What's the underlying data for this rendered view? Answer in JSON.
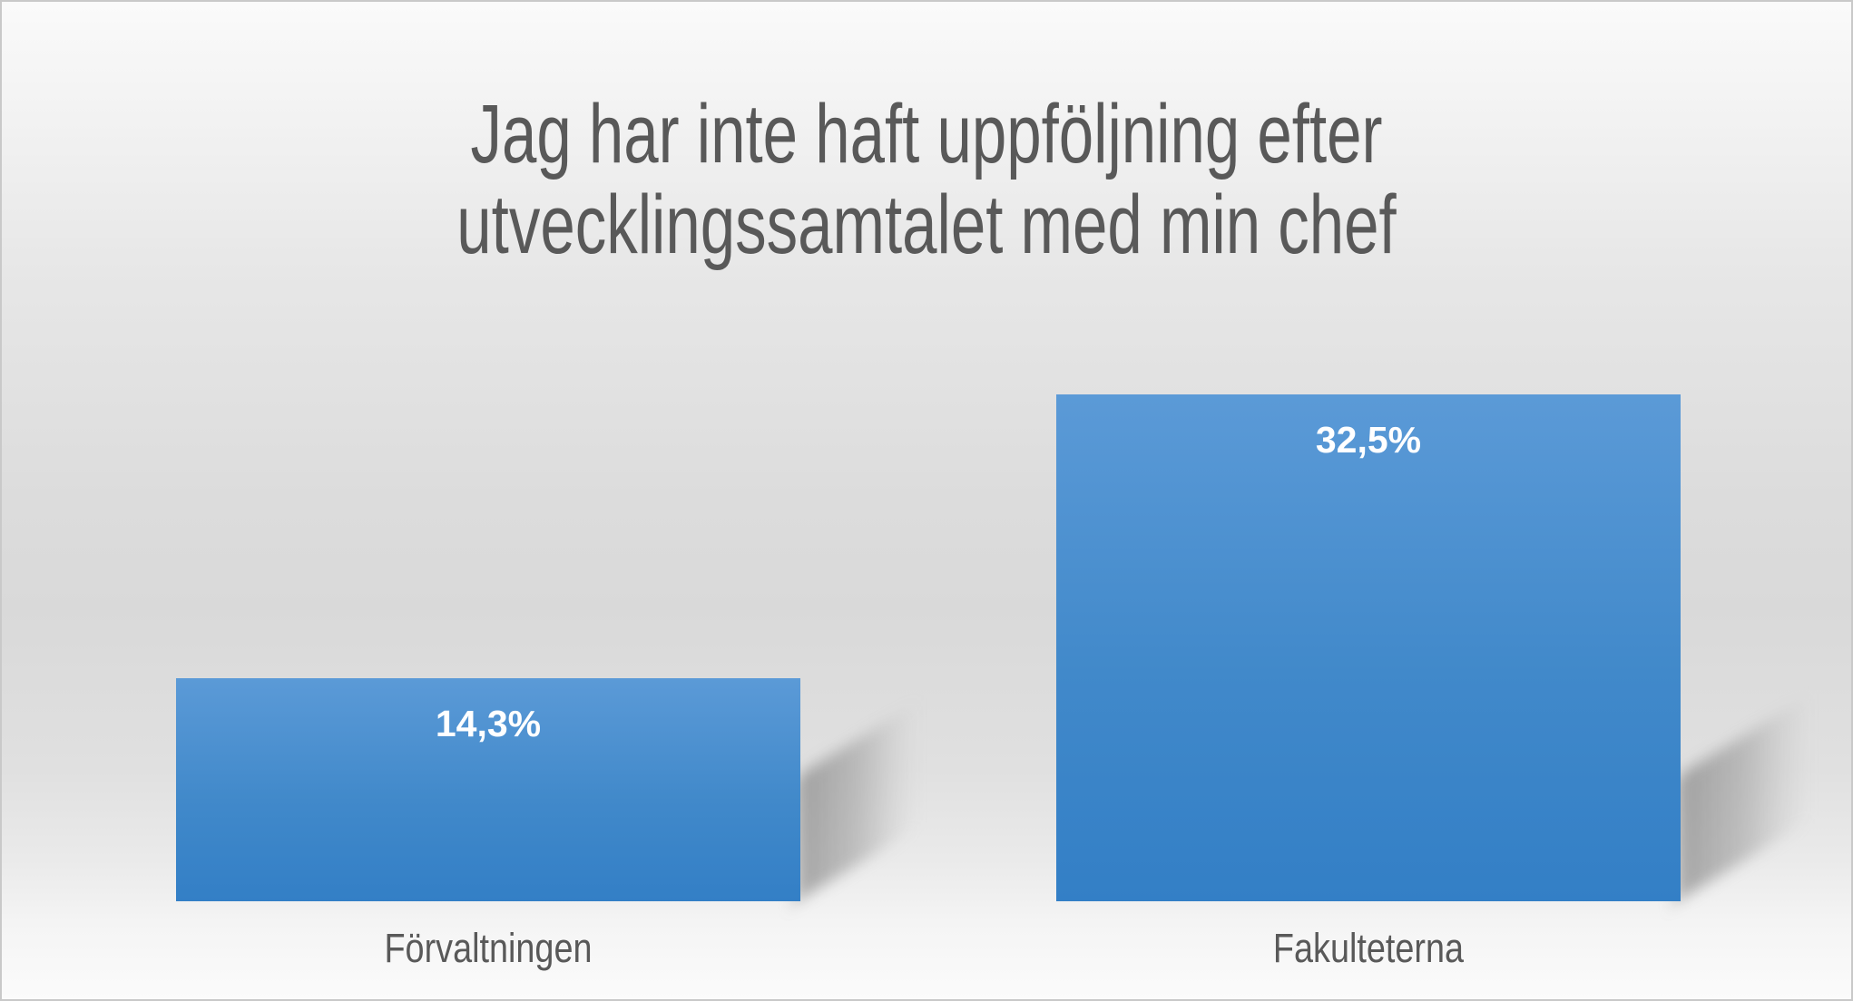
{
  "chart_data": {
    "type": "bar",
    "title": "Jag har inte haft uppföljning efter utvecklingssamtalet med min chef",
    "categories": [
      "Förvaltningen",
      "Fakulteterna"
    ],
    "values": [
      14.3,
      32.5
    ],
    "value_labels": [
      "14,3%",
      "32,5%"
    ],
    "value_label_position": "inside-end",
    "xlabel": "",
    "ylabel": "",
    "axis_visible": false,
    "gridlines": false,
    "legend": false,
    "baseline": 0,
    "colors": {
      "bar_gradient_top": "#5b9ad7",
      "bar_gradient_mid": "#4189ca",
      "bar_gradient_bottom": "#337fc6",
      "title_text": "#595959",
      "category_text": "#595959",
      "value_label_text": "#ffffff",
      "background_mid": "#d9d9d9",
      "border": "#c9c9c9",
      "shadow": "#686868"
    }
  }
}
